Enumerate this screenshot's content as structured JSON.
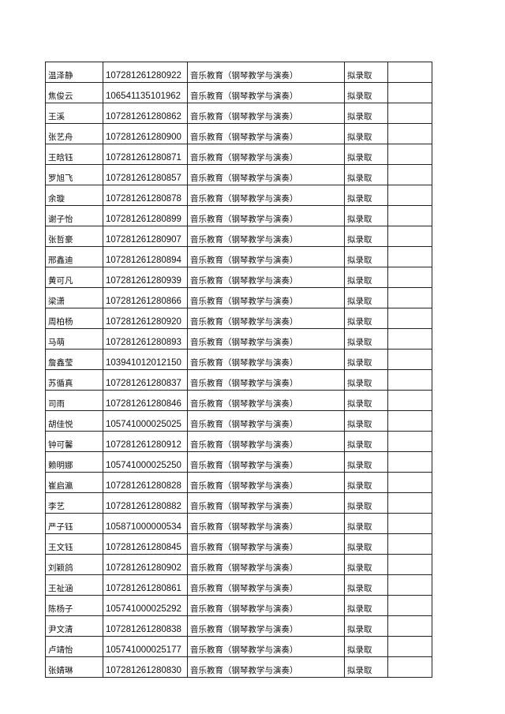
{
  "table": {
    "major": "音乐教育（钢琴教学与演奏）",
    "status": "拟录取",
    "rows": [
      {
        "name": "温泽静",
        "id": "107281261280922"
      },
      {
        "name": "焦俊云",
        "id": "106541135101962"
      },
      {
        "name": "王溪",
        "id": "107281261280862"
      },
      {
        "name": "张艺舟",
        "id": "107281261280900"
      },
      {
        "name": "王晗钰",
        "id": "107281261280871"
      },
      {
        "name": "罗旭飞",
        "id": "107281261280857"
      },
      {
        "name": "余璇",
        "id": "107281261280878"
      },
      {
        "name": "谢子怡",
        "id": "107281261280899"
      },
      {
        "name": "张哲豪",
        "id": "107281261280907"
      },
      {
        "name": "邢鑫迪",
        "id": "107281261280894"
      },
      {
        "name": "黄可凡",
        "id": "107281261280939"
      },
      {
        "name": "梁潇",
        "id": "107281261280866"
      },
      {
        "name": "周柏杨",
        "id": "107281261280920"
      },
      {
        "name": "马萌",
        "id": "107281261280893"
      },
      {
        "name": "詹鑫莹",
        "id": "103941012012150"
      },
      {
        "name": "苏循真",
        "id": "107281261280837"
      },
      {
        "name": "司雨",
        "id": "107281261280846"
      },
      {
        "name": "胡佳悦",
        "id": "105741000025025"
      },
      {
        "name": "钟可馨",
        "id": "107281261280912"
      },
      {
        "name": "赖明娜",
        "id": "105741000025250"
      },
      {
        "name": "崔启瀛",
        "id": "107281261280828"
      },
      {
        "name": "李艺",
        "id": "107281261280882"
      },
      {
        "name": "严子钰",
        "id": "105871000000534"
      },
      {
        "name": "王文钰",
        "id": "107281261280845"
      },
      {
        "name": "刘颖鸽",
        "id": "107281261280902"
      },
      {
        "name": "王祉涵",
        "id": "107281261280861"
      },
      {
        "name": "陈杨子",
        "id": "105741000025292"
      },
      {
        "name": "尹文清",
        "id": "107281261280838"
      },
      {
        "name": "卢靖怡",
        "id": "105741000025177"
      },
      {
        "name": "张婧琳",
        "id": "107281261280830"
      }
    ]
  }
}
